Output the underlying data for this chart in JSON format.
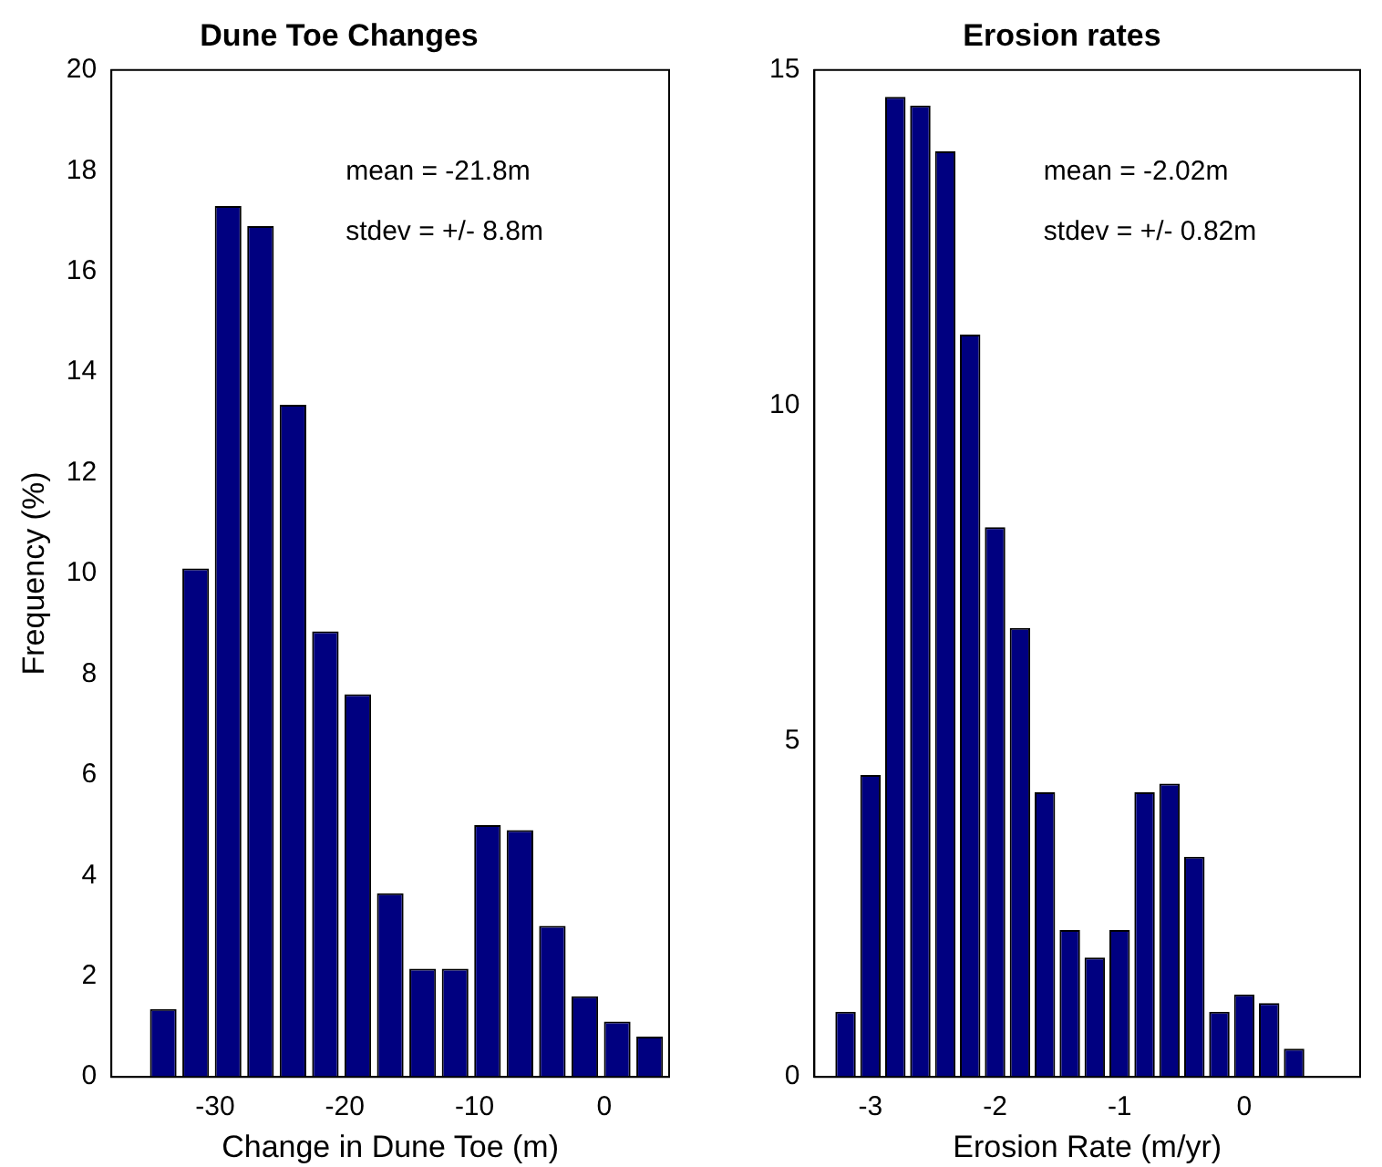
{
  "chart_data": [
    {
      "type": "histogram",
      "title": "Dune Toe Changes",
      "xlabel": "Change in Dune Toe (m)",
      "ylabel": "Frequency (%)",
      "color": "#000080",
      "bins": [
        -35.25,
        -32.75,
        -30.25,
        -27.75,
        -25.25,
        -22.75,
        -20.25,
        -17.75,
        -15.25,
        -12.75,
        -10.25,
        -7.75,
        -5.25,
        -2.75,
        -0.25,
        2.25,
        4.75
      ],
      "values": [
        1.35,
        10.1,
        17.3,
        16.9,
        13.35,
        8.85,
        7.6,
        3.65,
        2.15,
        2.15,
        5.0,
        4.9,
        3.0,
        1.6,
        1.1,
        0.8
      ],
      "xlim": [
        -38,
        5
      ],
      "xticks": [
        -30,
        -20,
        -10,
        0
      ],
      "ylim": [
        0,
        20
      ],
      "yticks": [
        0,
        2,
        4,
        6,
        8,
        10,
        12,
        14,
        16,
        18,
        20
      ],
      "annotations": [
        "mean = -21.8m",
        "stdev = +/- 8.8m"
      ]
    },
    {
      "type": "histogram",
      "title": "Erosion rates",
      "xlabel": "Erosion Rate (m/yr)",
      "color": "#000080",
      "bins": [
        -3.3,
        -3.1,
        -2.9,
        -2.7,
        -2.5,
        -2.3,
        -2.1,
        -1.9,
        -1.7,
        -1.5,
        -1.3,
        -1.1,
        -0.9,
        -0.7,
        -0.5,
        -0.3,
        -0.1,
        0.1,
        0.3,
        0.5
      ],
      "values": [
        0.97,
        4.5,
        14.6,
        14.47,
        13.79,
        11.06,
        8.19,
        6.69,
        4.24,
        2.19,
        1.78,
        2.19,
        4.24,
        4.37,
        3.28,
        0.97,
        1.23,
        1.1,
        0.42
      ],
      "xlim": [
        -3.45,
        0.93
      ],
      "xticks": [
        -3,
        -2,
        -1,
        0
      ],
      "ylim": [
        0,
        15
      ],
      "yticks": [
        0,
        5,
        10,
        15
      ],
      "annotations": [
        "mean = -2.02m",
        "stdev = +/- 0.82m"
      ]
    }
  ]
}
